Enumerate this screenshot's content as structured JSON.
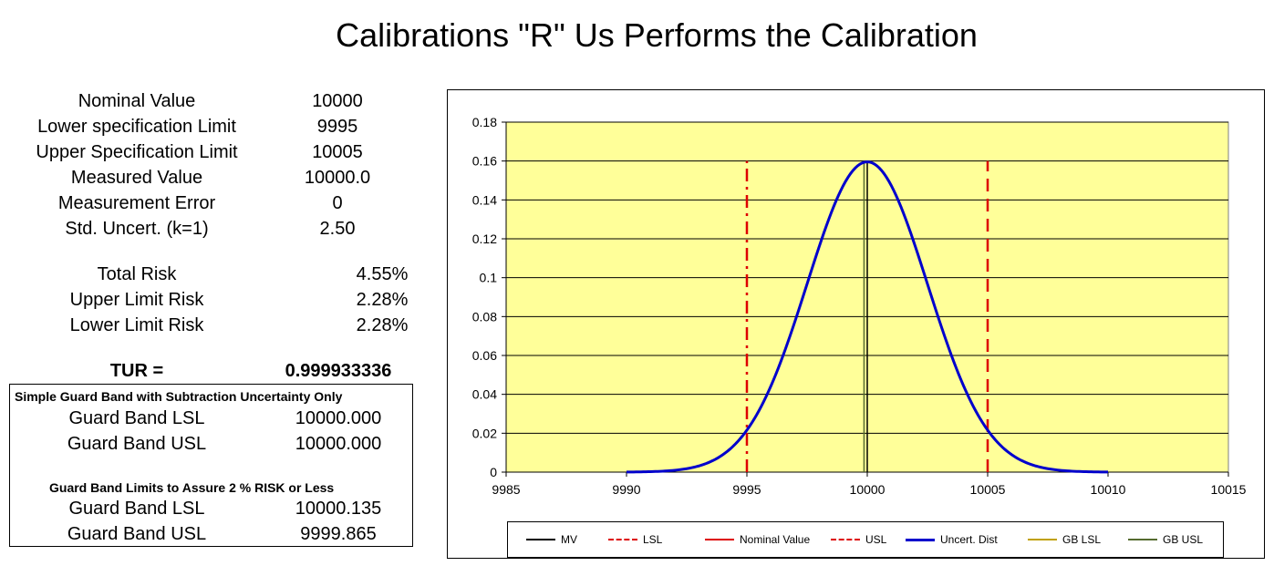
{
  "title": "Calibrations \"R\" Us Performs the Calibration",
  "params": [
    {
      "label": "Nominal Value",
      "value": "10000"
    },
    {
      "label": "Lower specification Limit",
      "value": "9995"
    },
    {
      "label": "Upper Specification Limit",
      "value": "10005"
    },
    {
      "label": "Measured Value",
      "value": "10000.0"
    },
    {
      "label": "Measurement Error",
      "value": "0"
    },
    {
      "label": "Std. Uncert. (k=1)",
      "value": "2.50"
    }
  ],
  "risks": [
    {
      "label": "Total Risk",
      "value": "4.55%"
    },
    {
      "label": "Upper Limit Risk",
      "value": "2.28%"
    },
    {
      "label": "Lower Limit Risk",
      "value": "2.28%"
    }
  ],
  "tur": {
    "label": "TUR =",
    "value": "0.999933336"
  },
  "guard_band": {
    "simple_heading": "Simple Guard Band with Subtraction Uncertainty Only",
    "simple": [
      {
        "label": "Guard Band LSL",
        "value": "10000.000"
      },
      {
        "label": "Guard Band USL",
        "value": "10000.000"
      }
    ],
    "risk_heading": "Guard Band Limits to Assure 2 % RISK or Less",
    "risk": [
      {
        "label": "Guard Band LSL",
        "value": "10000.135"
      },
      {
        "label": "Guard Band USL",
        "value": "9999.865"
      }
    ]
  },
  "colors": {
    "plot_bg": "#ffff99",
    "curve": "#0000cc",
    "limit": "#dd0000",
    "mv": "#000000",
    "gb_lsl": "#c0a000",
    "gb_usl": "#556b2f"
  },
  "chart_data": {
    "type": "line",
    "xlim": [
      9985,
      10015
    ],
    "ylim": [
      0,
      0.18
    ],
    "x_ticks": [
      "9985",
      "9990",
      "9995",
      "10000",
      "10005",
      "10010",
      "10015"
    ],
    "y_ticks": [
      "0",
      "0.02",
      "0.04",
      "0.06",
      "0.08",
      "0.1",
      "0.12",
      "0.14",
      "0.16",
      "0.18"
    ],
    "grid": true,
    "legend_position": "bottom",
    "curve": {
      "name": "Uncert. Dist",
      "mean": 10000,
      "sigma": 2.5,
      "x_range": [
        9990,
        10010
      ]
    },
    "vlines": [
      {
        "name": "LSL",
        "x": 9995,
        "ymax": 0.16,
        "style": "dashdot"
      },
      {
        "name": "USL",
        "x": 10005,
        "ymax": 0.16,
        "style": "dashed"
      },
      {
        "name": "MV",
        "x": 10000,
        "ymax": 0.16,
        "style": "solid"
      },
      {
        "name": "GB USL",
        "x": 9999.865,
        "ymax": 0.16,
        "style": "solid"
      }
    ],
    "legend": [
      {
        "name": "MV",
        "style": "solid",
        "color": "#000000"
      },
      {
        "name": "LSL",
        "style": "dashdot",
        "color": "#dd0000"
      },
      {
        "name": "Nominal Value",
        "style": "solid",
        "color": "#dd0000"
      },
      {
        "name": "USL",
        "style": "dashed",
        "color": "#dd0000"
      },
      {
        "name": "Uncert. Dist",
        "style": "thick",
        "color": "#0000cc"
      },
      {
        "name": "GB LSL",
        "style": "solid",
        "color": "#c0a000"
      },
      {
        "name": "GB USL",
        "style": "solid",
        "color": "#556b2f"
      }
    ]
  }
}
